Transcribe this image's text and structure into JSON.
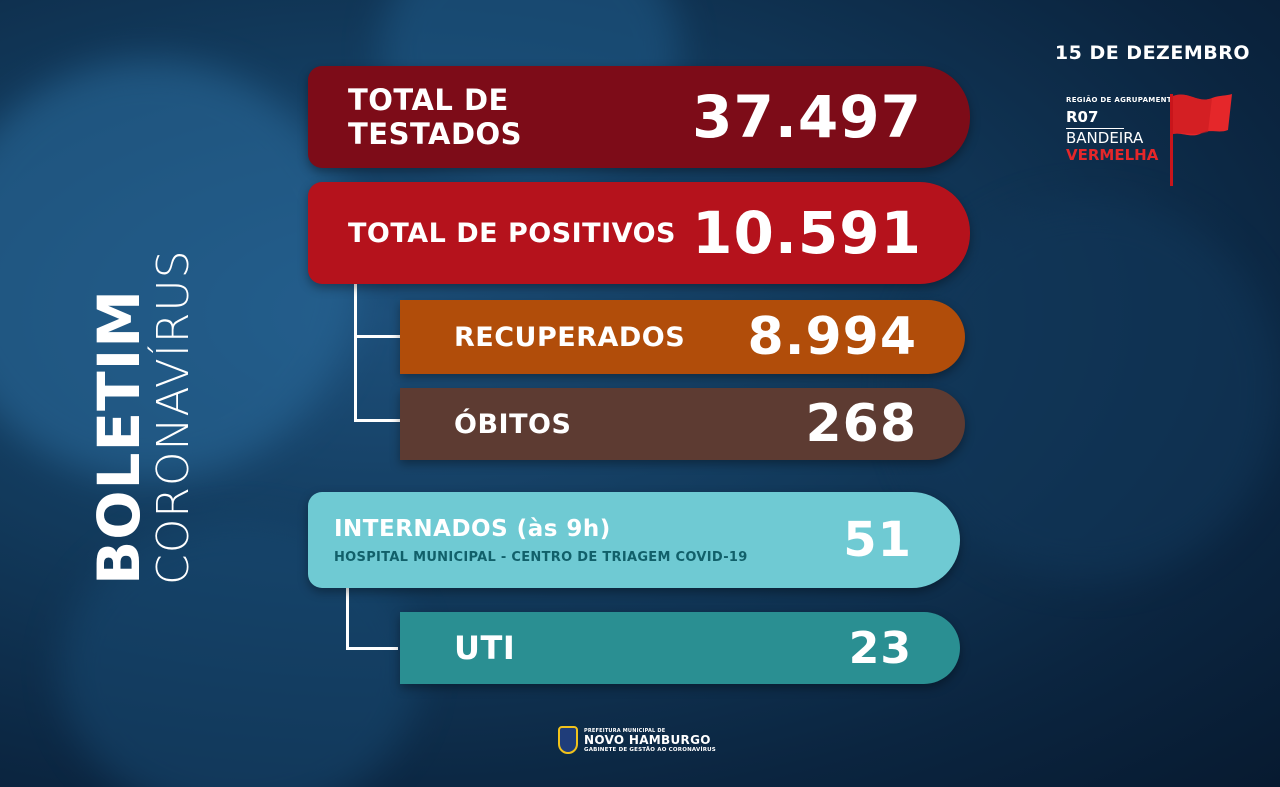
{
  "title": {
    "bold": "BOLETIM",
    "light": "CORONAVÍRUS"
  },
  "date": "15 DE DEZEMBRO",
  "region": {
    "caption": "REGIÃO DE AGRUPAMENTO",
    "code": "R07",
    "flag_label": "BANDEIRA",
    "flag_color_name": "VERMELHA",
    "flag_color": "#e5272a"
  },
  "stats": {
    "testados": {
      "label": "TOTAL DE TESTADOS",
      "value": "37.497",
      "color": "#7d0c18"
    },
    "positivos": {
      "label": "TOTAL DE POSITIVOS",
      "value": "10.591",
      "color": "#b5121c"
    },
    "recuperados": {
      "label": "RECUPERADOS",
      "value": "8.994",
      "color": "#b14d0a"
    },
    "obitos": {
      "label": "ÓBITOS",
      "value": "268",
      "color": "#5d3b32"
    },
    "internados": {
      "label": "INTERNADOS (às 9h)",
      "sublabel": "HOSPITAL MUNICIPAL - CENTRO DE TRIAGEM COVID-19",
      "value": "51",
      "color": "#6fcad3"
    },
    "uti": {
      "label": "UTI",
      "value": "23",
      "color": "#2a8f92"
    }
  },
  "footer": {
    "line1": "PREFEITURA MUNICIPAL DE",
    "line2": "NOVO HAMBURGO",
    "line3": "GABINETE DE GESTÃO AO CORONAVÍRUS"
  }
}
